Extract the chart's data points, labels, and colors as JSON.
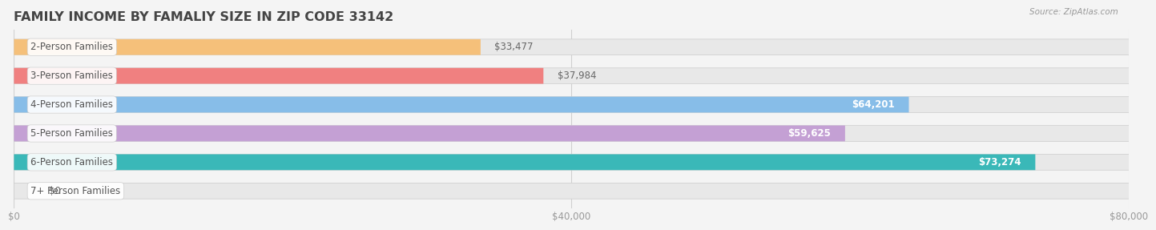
{
  "title": "FAMILY INCOME BY FAMALIY SIZE IN ZIP CODE 33142",
  "source": "Source: ZipAtlas.com",
  "categories": [
    "2-Person Families",
    "3-Person Families",
    "4-Person Families",
    "5-Person Families",
    "6-Person Families",
    "7+ Person Families"
  ],
  "values": [
    33477,
    37984,
    64201,
    59625,
    73274,
    0
  ],
  "bar_colors": [
    "#f5c07a",
    "#f08080",
    "#87bde8",
    "#c4a0d4",
    "#3ab8b8",
    "#c8d4f0"
  ],
  "value_labels": [
    "$33,477",
    "$37,984",
    "$64,201",
    "$59,625",
    "$73,274",
    "$0"
  ],
  "xlim": [
    0,
    80000
  ],
  "xtick_labels": [
    "$0",
    "$40,000",
    "$80,000"
  ],
  "xtick_vals": [
    0,
    40000,
    80000
  ],
  "bg_color": "#f4f4f4",
  "bar_bg_color": "#e8e8e8",
  "bar_bg_color2": "#ebebeb",
  "title_fontsize": 11.5,
  "bar_height": 0.55,
  "label_fontsize": 8.5,
  "value_fontsize": 8.5,
  "grid_color": "#d0d0d0",
  "text_color_dark": "#666666",
  "text_color_white": "#ffffff"
}
